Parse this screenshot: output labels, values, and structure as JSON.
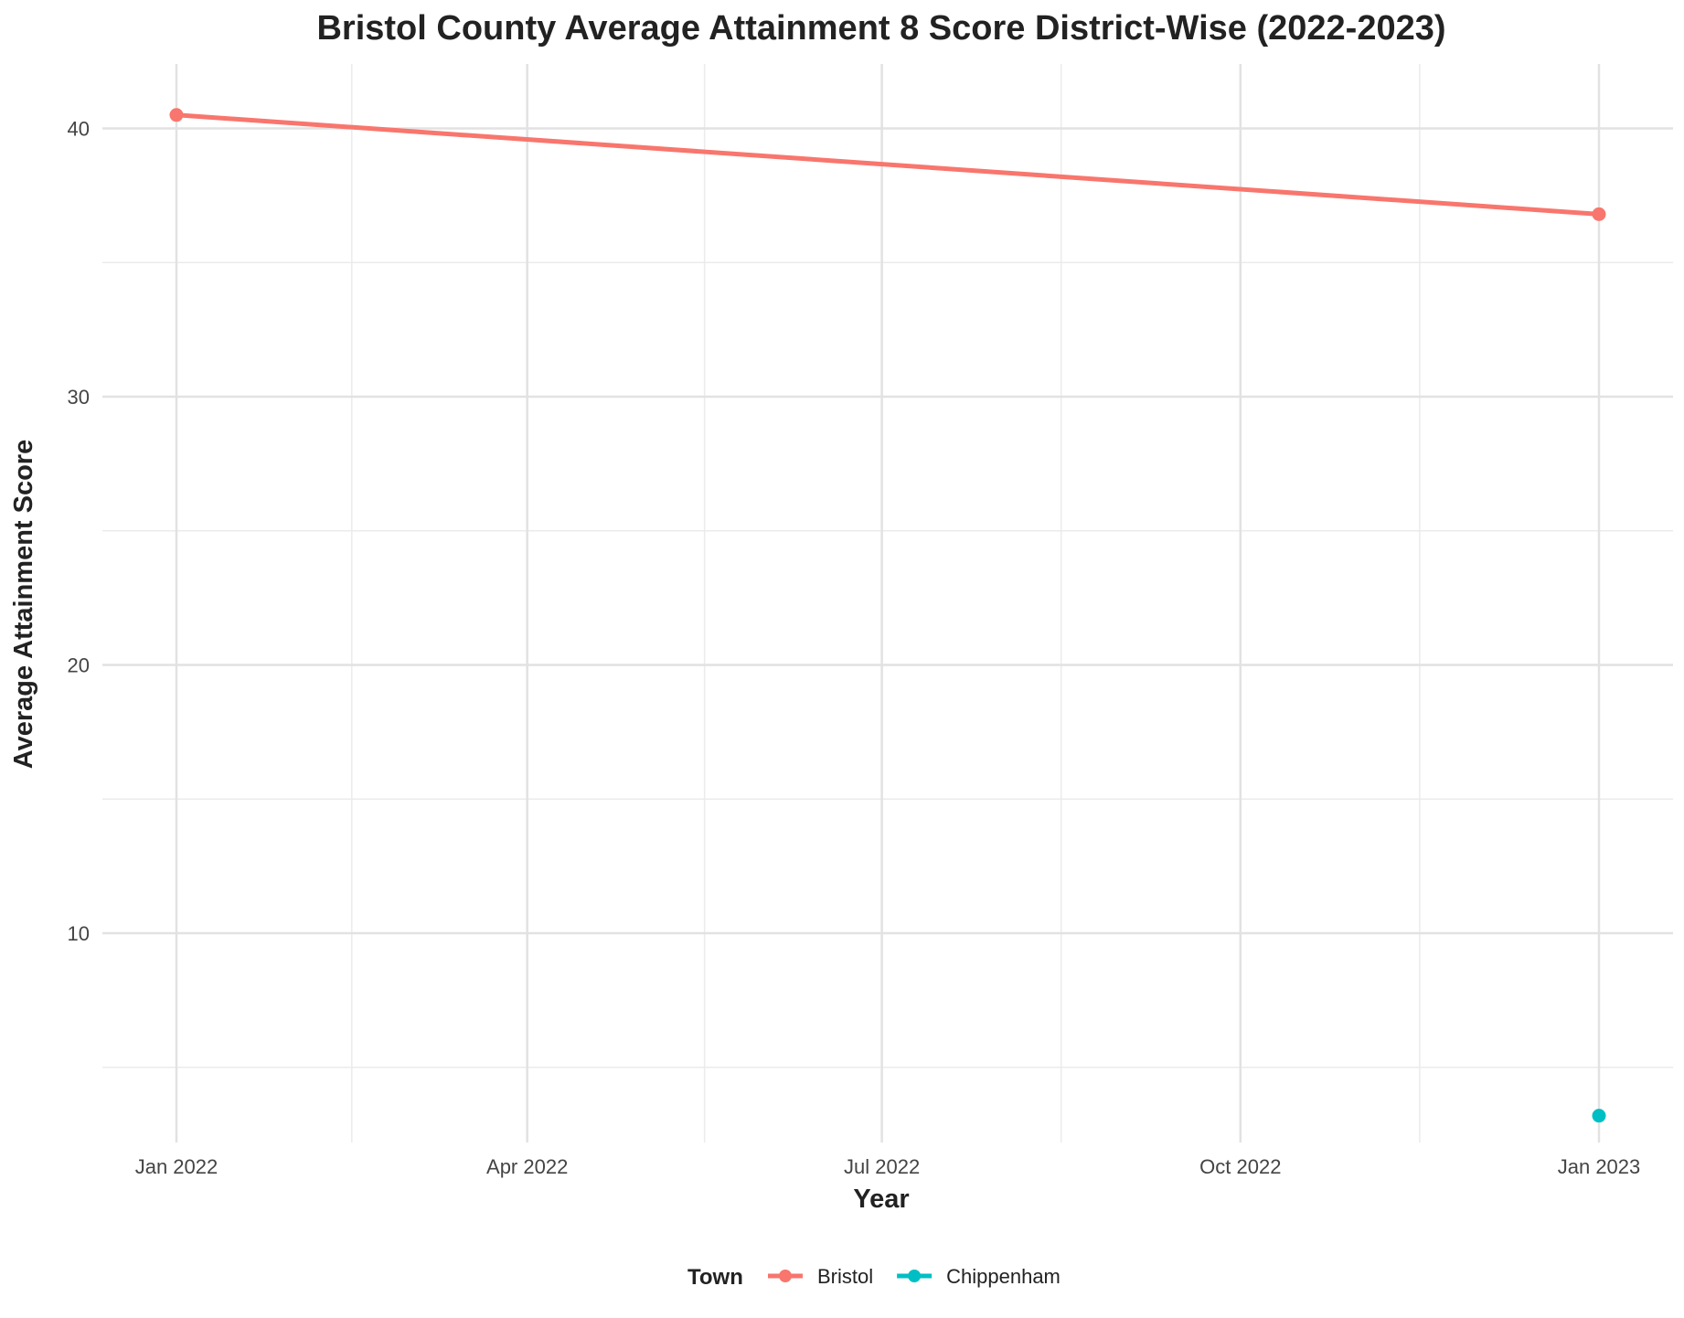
{
  "chart_data": {
    "type": "line",
    "title": "Bristol County Average Attainment 8 Score District-Wise (2022-2023)",
    "xlabel": "Year",
    "ylabel": "Average Attainment Score",
    "x_ticks": [
      "Jan 2022",
      "Apr 2022",
      "Jul 2022",
      "Oct 2022",
      "Jan 2023"
    ],
    "x_tick_values": [
      "2022-01-01",
      "2022-04-01",
      "2022-07-01",
      "2022-10-01",
      "2023-01-01"
    ],
    "xlim": [
      "2021-12-13",
      "2023-01-20"
    ],
    "y_ticks": [
      10,
      20,
      30,
      40
    ],
    "ylim": [
      2.2,
      42.4
    ],
    "grid": true,
    "legend": {
      "title": "Town",
      "position": "bottom"
    },
    "series": [
      {
        "name": "Bristol",
        "color": "#F8766D",
        "x": [
          "2022-01-01",
          "2023-01-01"
        ],
        "values": [
          40.5,
          36.8
        ]
      },
      {
        "name": "Chippenham",
        "color": "#00BFC4",
        "x": [
          "2023-01-01"
        ],
        "values": [
          3.2
        ]
      }
    ]
  }
}
